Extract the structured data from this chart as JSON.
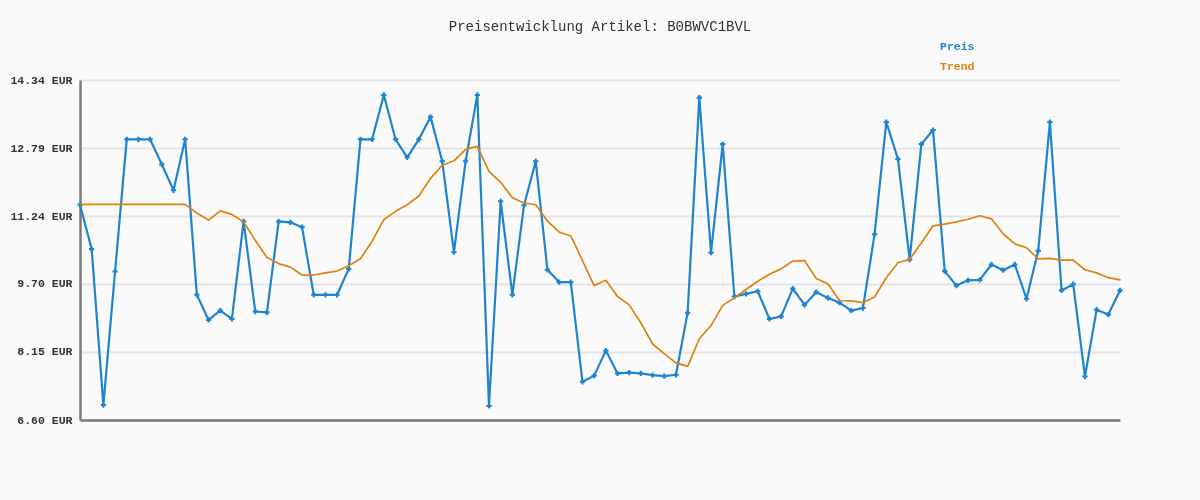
{
  "chart_data": {
    "type": "line",
    "title": "Preisentwicklung Artikel: B0BWVC1BVL",
    "categories": [
      null,
      null,
      null,
      null,
      null,
      null,
      null,
      null,
      null,
      null,
      null,
      null,
      null,
      null,
      null,
      null,
      null,
      null,
      null,
      null,
      null,
      null,
      null,
      null,
      null,
      null,
      null,
      null,
      null,
      null,
      null,
      null,
      null,
      null,
      null,
      null,
      null,
      null,
      null,
      null,
      null,
      null,
      null,
      null,
      null,
      null,
      null,
      null,
      null,
      null,
      null,
      null,
      null,
      null,
      null,
      null,
      null,
      null,
      null,
      null,
      null,
      null,
      null,
      null,
      null,
      null,
      null,
      null,
      null,
      null,
      null,
      null,
      null,
      null,
      null,
      null,
      null,
      null,
      null,
      null,
      null,
      null,
      null,
      null,
      null,
      null,
      null,
      null,
      null,
      null
    ],
    "series": [
      {
        "name": "Preis",
        "color": "#1f84d0",
        "marker": "cross",
        "values": [
          11.5,
          10.49,
          6.94,
          9.98,
          12.99,
          12.99,
          12.99,
          12.42,
          11.83,
          12.99,
          9.45,
          8.88,
          9.09,
          8.9,
          11.12,
          9.07,
          9.05,
          11.12,
          11.1,
          10.99,
          9.45,
          9.45,
          9.45,
          10.04,
          12.99,
          12.99,
          14.0,
          12.99,
          12.58,
          12.99,
          13.5,
          12.49,
          10.42,
          12.49,
          14.0,
          6.92,
          11.58,
          9.45,
          11.49,
          12.49,
          10.02,
          9.74,
          9.74,
          7.47,
          7.61,
          8.18,
          7.66,
          7.68,
          7.66,
          7.62,
          7.6,
          7.63,
          9.04,
          13.94,
          10.41,
          12.88,
          9.41,
          9.47,
          9.53,
          8.9,
          8.96,
          9.59,
          9.22,
          9.51,
          9.38,
          9.27,
          9.09,
          9.15,
          10.83,
          13.38,
          12.54,
          10.25,
          12.88,
          13.2,
          9.99,
          9.66,
          9.78,
          9.79,
          10.14,
          10.01,
          10.14,
          9.36,
          10.45,
          13.38,
          9.55,
          9.69,
          7.59,
          9.11,
          9.0,
          9.55
        ]
      },
      {
        "name": "Trend",
        "color": "#e0820e",
        "marker": "none",
        "values": [
          11.51,
          11.51,
          11.51,
          11.51,
          11.51,
          11.51,
          11.51,
          11.51,
          11.51,
          11.51,
          11.31,
          11.15,
          11.36,
          11.28,
          11.11,
          10.69,
          10.3,
          10.16,
          10.08,
          9.9,
          9.9,
          9.95,
          9.99,
          10.11,
          10.27,
          10.67,
          11.16,
          11.35,
          11.5,
          11.7,
          12.1,
          12.4,
          12.5,
          12.76,
          12.83,
          12.26,
          12.01,
          11.66,
          11.54,
          11.5,
          11.13,
          10.88,
          10.79,
          10.23,
          9.66,
          9.78,
          9.41,
          9.22,
          8.81,
          8.33,
          8.11,
          7.9,
          7.82,
          8.45,
          8.75,
          9.21,
          9.38,
          9.57,
          9.76,
          9.92,
          10.04,
          10.22,
          10.23,
          9.82,
          9.7,
          9.32,
          9.31,
          9.27,
          9.4,
          9.84,
          10.18,
          10.26,
          10.63,
          11.02,
          11.06,
          11.11,
          11.17,
          11.25,
          11.18,
          10.84,
          10.61,
          10.52,
          10.27,
          10.28,
          10.24,
          10.24,
          10.02,
          9.95,
          9.84,
          9.79
        ]
      }
    ],
    "ylim": [
      6.6,
      14.34
    ],
    "yticks": [
      {
        "value": 6.6,
        "label": "6.60 EUR"
      },
      {
        "value": 8.15,
        "label": "8.15 EUR"
      },
      {
        "value": 9.7,
        "label": "9.70 EUR"
      },
      {
        "value": 11.24,
        "label": "11.24 EUR"
      },
      {
        "value": 12.79,
        "label": "12.79 EUR"
      },
      {
        "value": 14.34,
        "label": "14.34 EUR"
      }
    ],
    "grid": "y",
    "legend": "top right",
    "tick_labels": "y",
    "line_style": "solid"
  }
}
